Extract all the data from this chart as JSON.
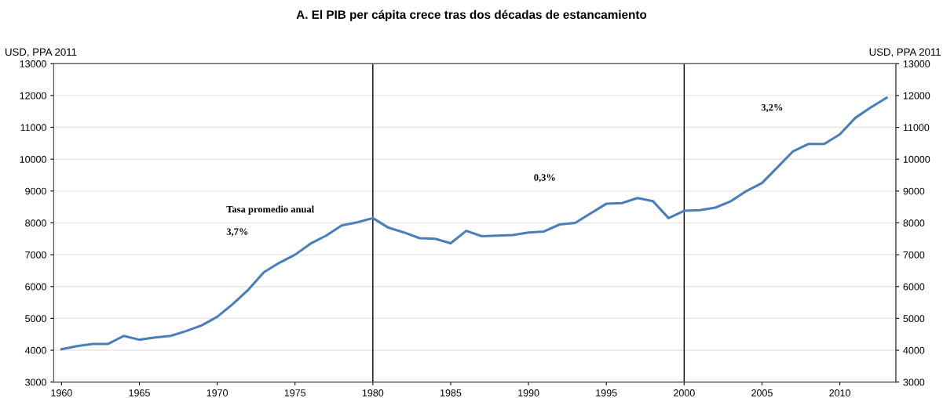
{
  "chart_data": {
    "type": "line",
    "title": "A. El PIB per cápita crece tras dos décadas de estancamiento",
    "ylabel": "USD, PPA 2011",
    "y2label": "USD, PPA 2011",
    "x": [
      1960,
      1961,
      1962,
      1963,
      1964,
      1965,
      1966,
      1967,
      1968,
      1969,
      1970,
      1971,
      1972,
      1973,
      1974,
      1975,
      1976,
      1977,
      1978,
      1979,
      1980,
      1981,
      1982,
      1983,
      1984,
      1985,
      1986,
      1987,
      1988,
      1989,
      1990,
      1991,
      1992,
      1993,
      1994,
      1995,
      1996,
      1997,
      1998,
      1999,
      2000,
      2001,
      2002,
      2003,
      2004,
      2005,
      2006,
      2007,
      2008,
      2009,
      2010,
      2011,
      2012,
      2013
    ],
    "series": [
      {
        "color": "#4a7ebb",
        "values": [
          4030,
          4130,
          4200,
          4200,
          4450,
          4330,
          4400,
          4450,
          4600,
          4780,
          5050,
          5450,
          5900,
          6450,
          6750,
          7000,
          7350,
          7600,
          7920,
          8020,
          8150,
          7850,
          7700,
          7520,
          7500,
          7360,
          7750,
          7580,
          7600,
          7620,
          7700,
          7730,
          7950,
          8000,
          8300,
          8600,
          8620,
          8780,
          8680,
          8150,
          8380,
          8400,
          8480,
          8680,
          9000,
          9250,
          9750,
          10250,
          10480,
          10480,
          10780,
          11300,
          11630,
          11930
        ]
      }
    ],
    "xlim": [
      1959.5,
      2013.6
    ],
    "xticks": [
      1960,
      1965,
      1970,
      1975,
      1980,
      1985,
      1990,
      1995,
      2000,
      2005,
      2010
    ],
    "ylim": [
      3000,
      13000
    ],
    "yticks": [
      3000,
      4000,
      5000,
      6000,
      7000,
      8000,
      9000,
      10000,
      11000,
      12000,
      13000
    ],
    "y2lim": [
      3000,
      13000
    ],
    "y2ticks": [
      3000,
      4000,
      5000,
      6000,
      7000,
      8000,
      9000,
      10000,
      11000,
      12000,
      13000
    ],
    "ref_lines": [
      {
        "axis": "x",
        "value": 1980,
        "color": "#000000"
      },
      {
        "axis": "x",
        "value": 2000,
        "color": "#000000"
      }
    ],
    "annotations": [
      "Tasa promedio anual",
      "3,7%",
      "0,3%",
      "3,2%"
    ],
    "grid": "y",
    "legend": false,
    "marker": "none",
    "line_style": "solid"
  }
}
